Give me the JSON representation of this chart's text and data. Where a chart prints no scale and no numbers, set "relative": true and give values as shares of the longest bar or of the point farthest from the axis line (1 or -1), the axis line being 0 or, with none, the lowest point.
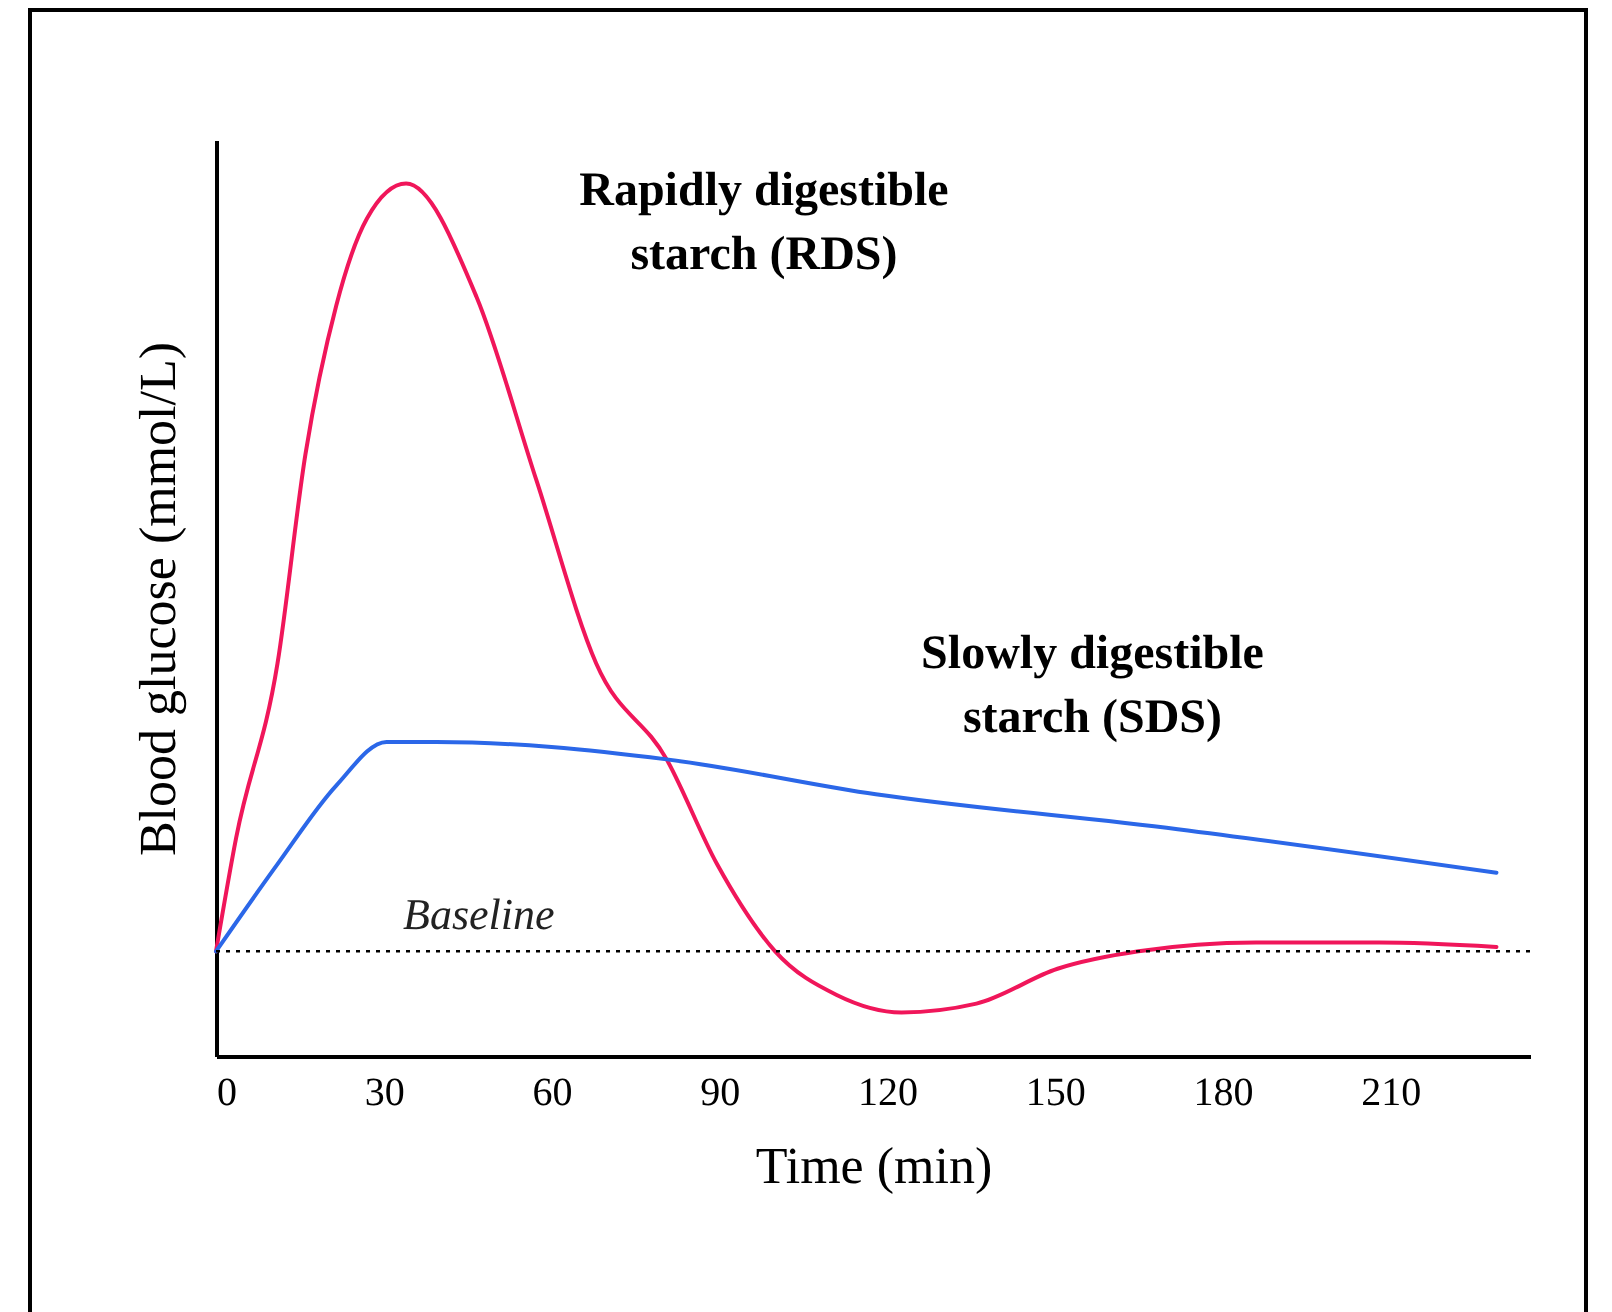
{
  "chart_data": {
    "type": "line",
    "relative": true,
    "xlabel": "Time (min)",
    "ylabel": "Blood glucose (mmol/L)",
    "xlim": [
      0,
      235
    ],
    "xticks": [
      0,
      30,
      60,
      90,
      120,
      150,
      180,
      210
    ],
    "grid": false,
    "marker": "none",
    "line_style": "solid",
    "series": [
      {
        "name": "Rapidly digestible starch (RDS)",
        "color": "#f0165a",
        "x": [
          0,
          3.6,
          11,
          16,
          21.5,
          27,
          34,
          46.6,
          57.3,
          68,
          80.6,
          89.6,
          100,
          111,
          122.6,
          136,
          150.5,
          165,
          186,
          208,
          229
        ],
        "values": [
          0.12,
          0.25,
          0.45,
          0.69,
          0.86,
          0.96,
          1.0,
          0.87,
          0.66,
          0.45,
          0.34,
          0.22,
          0.12,
          0.07,
          0.05,
          0.06,
          0.1,
          0.12,
          0.13,
          0.13,
          0.125
        ]
      },
      {
        "name": "Slowly digestible starch (SDS)",
        "color": "#2b67e8",
        "x": [
          0,
          11,
          21.5,
          30.5,
          39.4,
          80.6,
          118,
          172,
          229
        ],
        "values": [
          0.12,
          0.22,
          0.31,
          0.36,
          0.36,
          0.34,
          0.3,
          0.26,
          0.21
        ]
      }
    ],
    "ref_lines": [
      {
        "axis": "y",
        "value": 0.12,
        "label": "Baseline",
        "line_style": "dotted",
        "color": "#000000"
      }
    ]
  }
}
